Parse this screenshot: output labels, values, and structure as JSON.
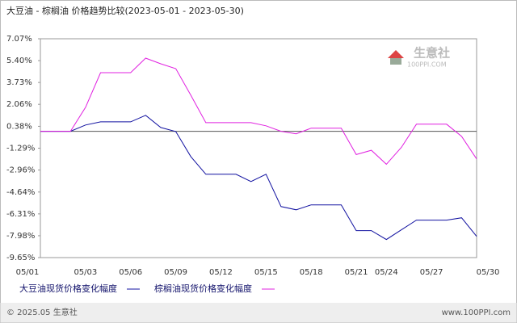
{
  "chart_data": {
    "type": "line",
    "title": "大豆油 - 棕榈油 价格趋势比较(2023-05-01 - 2023-05-30)",
    "categories": [
      "05/01",
      null,
      null,
      "05/03",
      null,
      null,
      "05/06",
      null,
      null,
      "05/09",
      null,
      null,
      "05/12",
      null,
      null,
      "05/15",
      null,
      null,
      "05/18",
      null,
      null,
      "05/21",
      null,
      "05/24",
      null,
      null,
      "05/27",
      null,
      null,
      "05/30"
    ],
    "series": [
      {
        "name": "大豆油现货价格变化幅度",
        "color": "#1010a0",
        "values": [
          0,
          0,
          0,
          0.48,
          0.72,
          0.72,
          0.72,
          1.22,
          0.29,
          -0.02,
          -1.93,
          -3.28,
          -3.28,
          -3.28,
          -3.84,
          -3.28,
          -5.75,
          -6.0,
          -5.62,
          -5.62,
          -5.62,
          -7.59,
          -7.59,
          -8.27,
          -7.53,
          -6.79,
          -6.79,
          -6.79,
          -6.61,
          -8.03
        ]
      },
      {
        "name": "棕榈油现货价格变化幅度",
        "color": "#e020e0",
        "values": [
          0,
          0,
          0,
          1.83,
          4.48,
          4.48,
          4.48,
          5.59,
          5.16,
          4.79,
          2.76,
          0.66,
          0.66,
          0.66,
          0.66,
          0.42,
          0,
          -0.19,
          0.24,
          0.24,
          0.24,
          -1.78,
          -1.45,
          -2.52,
          -1.23,
          0.54,
          0.54,
          0.54,
          -0.39,
          -2.11
        ]
      }
    ],
    "ylim": [
      -9.65,
      7.07
    ],
    "yticks": [
      {
        "value": 7.07,
        "label": "7.07%"
      },
      {
        "value": 5.4,
        "label": "5.40%"
      },
      {
        "value": 3.73,
        "label": "3.73%"
      },
      {
        "value": 2.06,
        "label": "2.06%"
      },
      {
        "value": 0.38,
        "label": "0.38%"
      },
      {
        "value": -1.29,
        "label": "-1.29%"
      },
      {
        "value": -2.96,
        "label": "-2.96%"
      },
      {
        "value": -4.64,
        "label": "-4.64%"
      },
      {
        "value": -6.31,
        "label": "-6.31%"
      },
      {
        "value": -7.98,
        "label": "-7.98%"
      },
      {
        "value": -9.65,
        "label": "-9.65%"
      }
    ],
    "grid": false
  },
  "watermark": {
    "name": "生意社",
    "site": "100PPI.COM"
  },
  "footer": {
    "copyright": "© 2025.05 生意社",
    "url": "www.100PPI.com"
  }
}
